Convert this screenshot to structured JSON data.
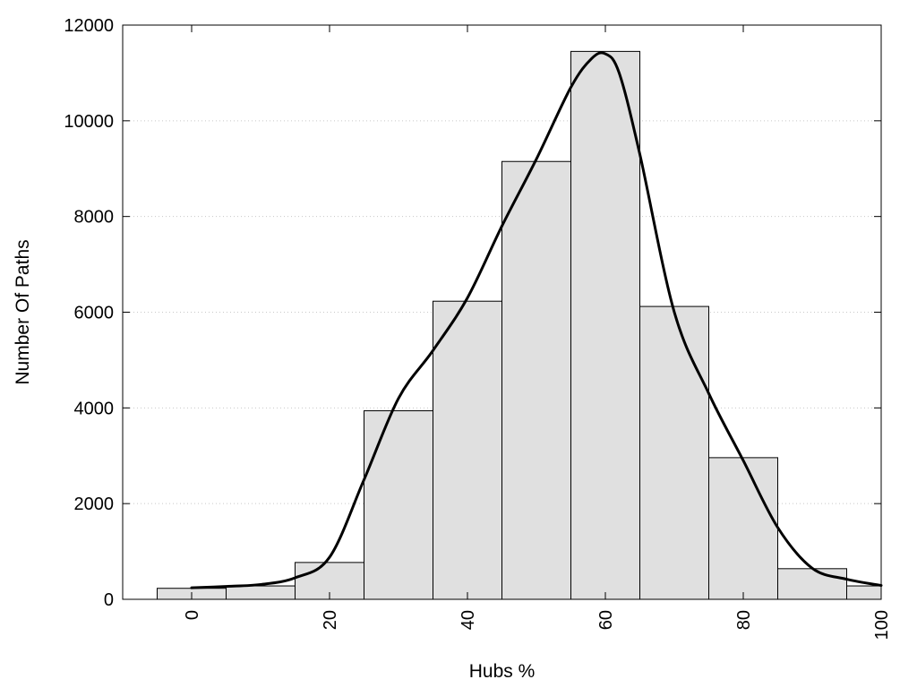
{
  "chart_data": {
    "type": "bar",
    "title": "",
    "xlabel": "Hubs %",
    "ylabel": "Number Of Paths",
    "xlim": [
      -10,
      100
    ],
    "ylim": [
      0,
      12000
    ],
    "x_ticks": [
      0,
      20,
      40,
      60,
      80,
      100
    ],
    "y_ticks": [
      0,
      2000,
      4000,
      6000,
      8000,
      10000,
      12000
    ],
    "grid": "horizontal dotted",
    "legend": "none",
    "bin_width": 10,
    "bins": [
      {
        "center": 0,
        "value": 230
      },
      {
        "center": 10,
        "value": 280
      },
      {
        "center": 20,
        "value": 770
      },
      {
        "center": 30,
        "value": 3940
      },
      {
        "center": 40,
        "value": 6230
      },
      {
        "center": 50,
        "value": 9150
      },
      {
        "center": 60,
        "value": 11450
      },
      {
        "center": 70,
        "value": 6120
      },
      {
        "center": 80,
        "value": 2960
      },
      {
        "center": 90,
        "value": 640
      },
      {
        "center": 100,
        "value": 280
      }
    ],
    "density_curve": {
      "x": [
        0,
        5,
        10,
        15,
        20,
        25,
        30,
        35,
        40,
        45,
        50,
        55,
        58,
        60,
        62,
        65,
        70,
        75,
        80,
        85,
        90,
        95,
        100
      ],
      "y": [
        240,
        270,
        310,
        450,
        880,
        2500,
        4200,
        5200,
        6300,
        7800,
        9200,
        10700,
        11300,
        11400,
        11000,
        9300,
        6000,
        4300,
        2900,
        1500,
        650,
        420,
        290
      ]
    },
    "colors": {
      "bar_fill": "#e0e0e0",
      "bar_stroke": "#000000",
      "curve": "#000000",
      "grid": "#c8c8c8"
    }
  }
}
